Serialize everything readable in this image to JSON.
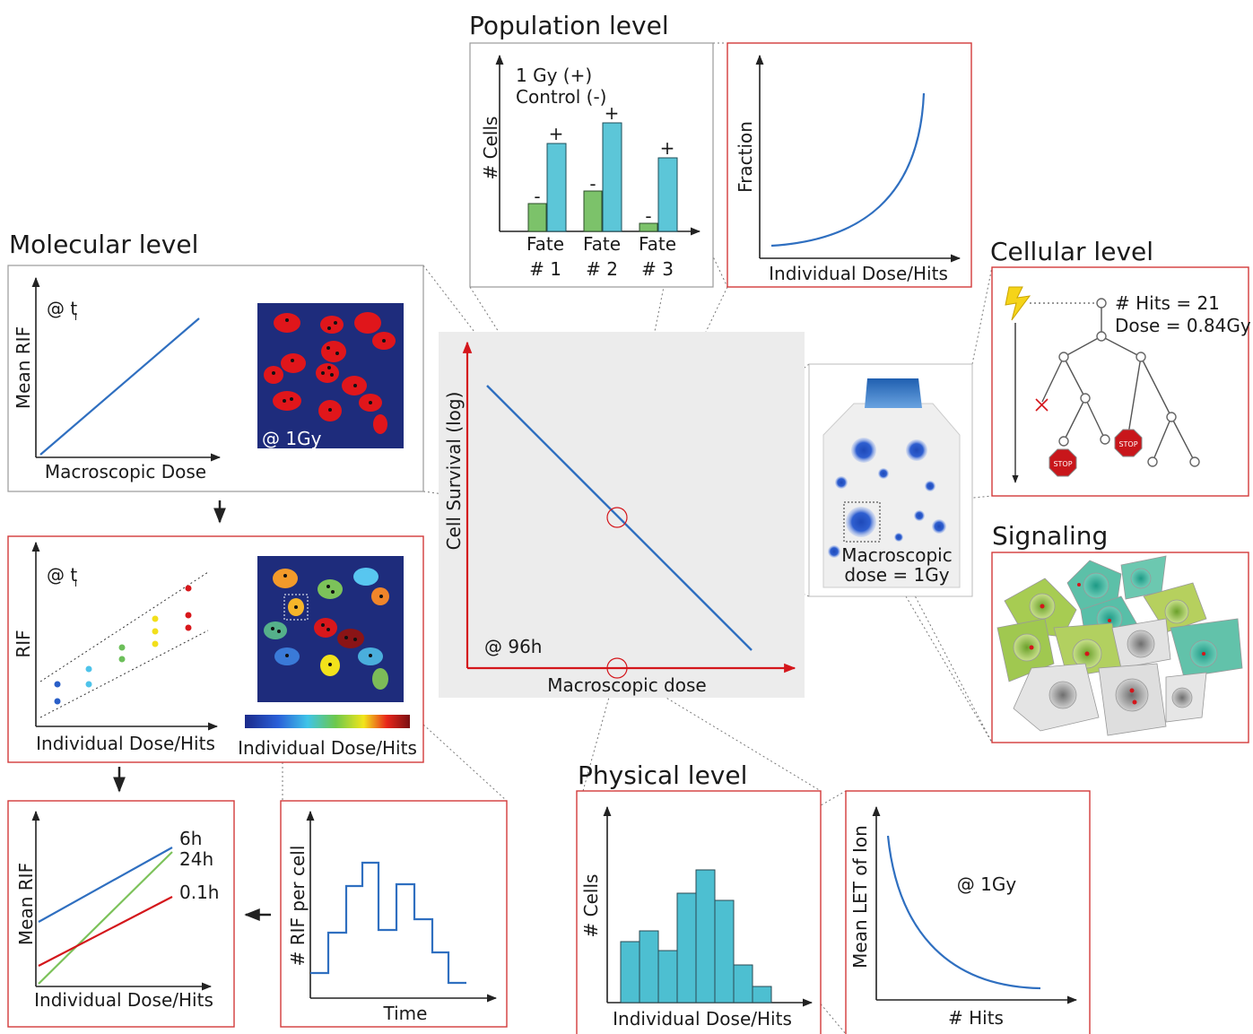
{
  "population": {
    "title": "Population level",
    "legend": [
      "1 Gy (+)",
      "Control (-)"
    ],
    "y_label": "# Cells",
    "plus": "+",
    "minus": "-",
    "fates": [
      {
        "name": "Fate",
        "number": "# 1"
      },
      {
        "name": "Fate",
        "number": "# 2"
      },
      {
        "name": "Fate",
        "number": "# 3"
      }
    ]
  },
  "fraction": {
    "y_label": "Fraction",
    "x_label": "Individual Dose/Hits"
  },
  "molecular": {
    "title": "Molecular level",
    "time": "@ t",
    "time_sub": "i",
    "y_label": "Mean RIF",
    "x_label": "Macroscopic Dose",
    "image_label": "@ 1Gy"
  },
  "rif": {
    "time": "@ t",
    "time_sub": "i",
    "y_label": "RIF",
    "x_label": "Individual Dose/Hits",
    "colorbar_label": "Individual Dose/Hits"
  },
  "mean_rif": {
    "y_label": "Mean RIF",
    "x_label": "Individual Dose/Hits",
    "series": [
      "6h",
      "24h",
      "0.1h"
    ]
  },
  "rif_time": {
    "y_label": "# RIF per cell",
    "x_label": "Time"
  },
  "survival": {
    "y_label": "Cell Survival (log)",
    "time": "@ 96h",
    "x_label": "Macroscopic dose"
  },
  "flask": {
    "label_lines": [
      "Macroscopic",
      "dose = 1Gy"
    ]
  },
  "cellular": {
    "title": "Cellular level",
    "hits": "# Hits = 21",
    "dose": "Dose = 0.84Gy",
    "stop": "STOP"
  },
  "signaling": {
    "title": "Signaling"
  },
  "physical": {
    "title": "Physical level",
    "y_label": "# Cells",
    "x_label": "Individual Dose/Hits"
  },
  "let": {
    "y_label": "Mean LET of Ion",
    "annotation": "@ 1Gy",
    "x_label": "# Hits"
  }
}
